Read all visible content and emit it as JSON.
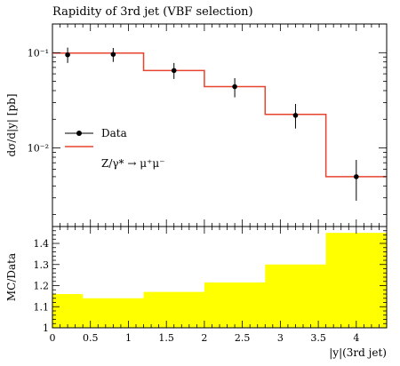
{
  "chart_data": [
    {
      "type": "step",
      "title": "Rapidity of 3rd jet (VBF selection)",
      "ylabel": "dσ/d|y| [pb]",
      "xlabel": "",
      "xlim": [
        0,
        4.4
      ],
      "ylim": [
        0.0015,
        0.2
      ],
      "yscale": "log",
      "grid": false,
      "legend_position": "middle-left",
      "x_ticks": [
        "0",
        "0.5",
        "1",
        "1.5",
        "2",
        "2.5",
        "3",
        "3.5",
        "4"
      ],
      "x_tick_values": [
        0,
        0.5,
        1,
        1.5,
        2,
        2.5,
        3,
        3.5,
        4
      ],
      "y_ticks": [
        "10⁻¹",
        "10⁻²"
      ],
      "y_tick_values": [
        0.1,
        0.01
      ],
      "bin_edges": [
        0,
        0.4,
        1.2,
        2.0,
        2.8,
        3.6,
        4.4
      ],
      "series": [
        {
          "name": "Data",
          "style": "points",
          "color": "#000000",
          "x": [
            0.2,
            0.8,
            1.6,
            2.4,
            3.2,
            4.0
          ],
          "values": [
            0.095,
            0.096,
            0.065,
            0.044,
            0.022,
            0.005
          ],
          "err_low": [
            0.078,
            0.08,
            0.053,
            0.034,
            0.016,
            0.0028
          ],
          "err_high": [
            0.113,
            0.112,
            0.078,
            0.054,
            0.029,
            0.0075
          ]
        },
        {
          "name": "Z/γ* → μ⁺μ⁻",
          "style": "histogram",
          "color": "#e8432e",
          "values": [
            0.099,
            0.099,
            0.065,
            0.044,
            0.0225,
            0.005
          ]
        }
      ]
    },
    {
      "type": "ratio",
      "ylabel": "MC/Data",
      "xlabel": "|y|(3rd jet)",
      "xlim": [
        0,
        4.4
      ],
      "ylim": [
        1.0,
        1.48
      ],
      "band_color": "#ffff00",
      "x_ticks": [
        "0",
        "0.5",
        "1",
        "1.5",
        "2",
        "2.5",
        "3",
        "3.5",
        "4"
      ],
      "x_tick_values": [
        0,
        0.5,
        1,
        1.5,
        2,
        2.5,
        3,
        3.5,
        4
      ],
      "y_ticks": [
        "1",
        "1.1",
        "1.2",
        "1.3",
        "1.4"
      ],
      "y_tick_values": [
        1.0,
        1.1,
        1.2,
        1.3,
        1.4
      ],
      "bin_edges": [
        0,
        0.4,
        1.2,
        2.0,
        2.8,
        3.6,
        4.4
      ],
      "values": [
        1.16,
        1.14,
        1.17,
        1.215,
        1.3,
        1.45
      ]
    }
  ]
}
